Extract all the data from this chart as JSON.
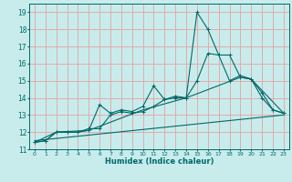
{
  "xlabel": "Humidex (Indice chaleur)",
  "ylabel": "",
  "bg_color": "#c8ecec",
  "grid_color": "#e8a0a0",
  "line_color": "#006868",
  "xlim": [
    -0.5,
    23.5
  ],
  "ylim": [
    11,
    19.5
  ],
  "yticks": [
    11,
    12,
    13,
    14,
    15,
    16,
    17,
    18,
    19
  ],
  "xticks": [
    0,
    1,
    2,
    3,
    4,
    5,
    6,
    7,
    8,
    9,
    10,
    11,
    12,
    13,
    14,
    15,
    16,
    17,
    18,
    19,
    20,
    21,
    22,
    23
  ],
  "line1_x": [
    0,
    1,
    2,
    3,
    4,
    5,
    6,
    7,
    8,
    9,
    10,
    11,
    12,
    13,
    14,
    15,
    16,
    17,
    18,
    19,
    20,
    21,
    22,
    23
  ],
  "line1_y": [
    11.4,
    11.5,
    12.0,
    12.0,
    12.0,
    12.1,
    13.6,
    13.1,
    13.3,
    13.2,
    13.5,
    14.7,
    13.9,
    14.1,
    14.0,
    19.0,
    18.0,
    16.5,
    16.5,
    15.2,
    15.1,
    14.3,
    13.3,
    13.1
  ],
  "line2_x": [
    0,
    1,
    2,
    3,
    4,
    5,
    6,
    7,
    8,
    9,
    10,
    11,
    12,
    13,
    14,
    15,
    16,
    17,
    18,
    19,
    20,
    21,
    22,
    23
  ],
  "line2_y": [
    11.4,
    11.5,
    12.0,
    12.0,
    12.0,
    12.2,
    12.2,
    13.0,
    13.2,
    13.1,
    13.2,
    13.5,
    13.9,
    14.0,
    14.0,
    15.0,
    16.6,
    16.5,
    15.0,
    15.3,
    15.1,
    14.0,
    13.3,
    13.1
  ],
  "line3_x": [
    0,
    2,
    5,
    10,
    14,
    19,
    20,
    23
  ],
  "line3_y": [
    11.4,
    12.0,
    12.1,
    13.3,
    14.0,
    15.2,
    15.1,
    13.1
  ],
  "line4_x": [
    0,
    23
  ],
  "line4_y": [
    11.5,
    13.0
  ]
}
